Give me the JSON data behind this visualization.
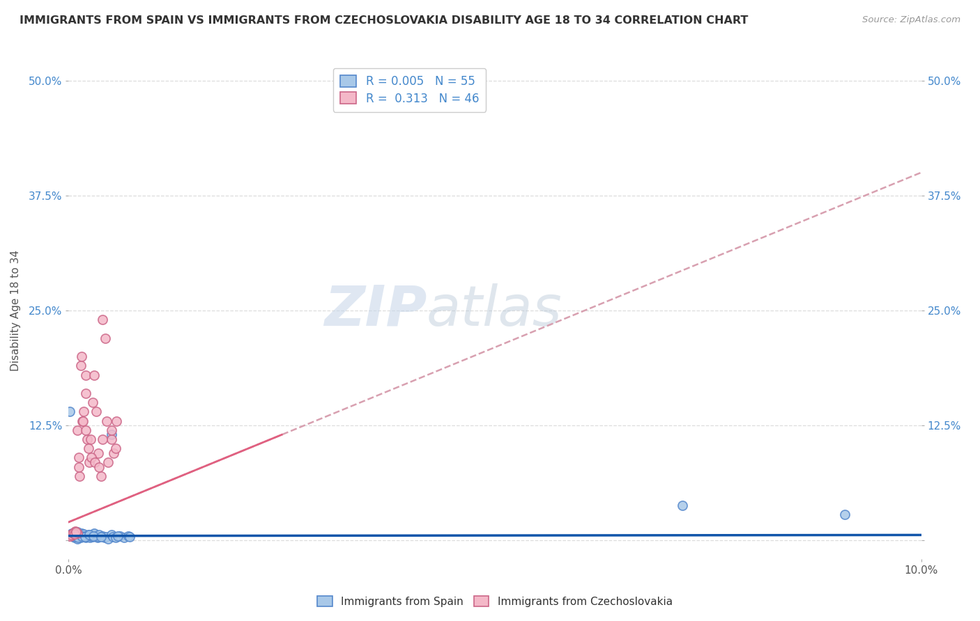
{
  "title": "IMMIGRANTS FROM SPAIN VS IMMIGRANTS FROM CZECHOSLOVAKIA DISABILITY AGE 18 TO 34 CORRELATION CHART",
  "source": "Source: ZipAtlas.com",
  "ylabel": "Disability Age 18 to 34",
  "watermark": "ZIPatlas",
  "legend_blue_label": "Immigrants from Spain",
  "legend_pink_label": "Immigrants from Czechoslovakia",
  "R_blue": "0.005",
  "N_blue": "55",
  "R_pink": "0.313",
  "N_pink": "46",
  "blue_face": "#a8c8e8",
  "blue_edge": "#5588cc",
  "blue_line": "#1155aa",
  "pink_face": "#f4b8c8",
  "pink_edge": "#cc6688",
  "pink_line_solid": "#e06080",
  "pink_line_dash": "#d8a0b0",
  "grid_color": "#dddddd",
  "blue_scatter_x": [
    0.0002,
    0.0004,
    0.0005,
    0.0006,
    0.0007,
    0.0008,
    0.001,
    0.001,
    0.001,
    0.0012,
    0.0013,
    0.0014,
    0.0015,
    0.0016,
    0.0017,
    0.0018,
    0.002,
    0.002,
    0.0022,
    0.0023,
    0.0025,
    0.0026,
    0.0028,
    0.003,
    0.003,
    0.0032,
    0.0034,
    0.0035,
    0.0036,
    0.004,
    0.0042,
    0.0044,
    0.0046,
    0.005,
    0.0052,
    0.0055,
    0.006,
    0.0065,
    0.007,
    0.0072,
    0.0001,
    0.0003,
    0.0005,
    0.0007,
    0.0009,
    0.0011,
    0.0015,
    0.0019,
    0.0024,
    0.0029,
    0.0038,
    0.005,
    0.0058,
    0.072,
    0.091
  ],
  "blue_scatter_y": [
    0.005,
    0.008,
    0.004,
    0.006,
    0.003,
    0.007,
    0.005,
    0.009,
    0.002,
    0.006,
    0.004,
    0.003,
    0.008,
    0.006,
    0.005,
    0.007,
    0.005,
    0.003,
    0.004,
    0.006,
    0.003,
    0.005,
    0.004,
    0.007,
    0.008,
    0.005,
    0.003,
    0.004,
    0.006,
    0.005,
    0.003,
    0.004,
    0.002,
    0.006,
    0.004,
    0.003,
    0.005,
    0.003,
    0.005,
    0.004,
    0.14,
    0.007,
    0.006,
    0.005,
    0.004,
    0.003,
    0.005,
    0.004,
    0.006,
    0.005,
    0.004,
    0.115,
    0.005,
    0.038,
    0.028
  ],
  "pink_scatter_x": [
    0.0002,
    0.0004,
    0.0005,
    0.0006,
    0.0007,
    0.0008,
    0.001,
    0.001,
    0.0012,
    0.0013,
    0.0014,
    0.0015,
    0.0016,
    0.0018,
    0.002,
    0.002,
    0.0022,
    0.0024,
    0.0026,
    0.0028,
    0.003,
    0.0032,
    0.0035,
    0.0038,
    0.004,
    0.0043,
    0.0046,
    0.005,
    0.0053,
    0.0056,
    0.0001,
    0.0003,
    0.0005,
    0.0007,
    0.0009,
    0.0012,
    0.0017,
    0.002,
    0.0023,
    0.0027,
    0.0031,
    0.0036,
    0.004,
    0.0045,
    0.005,
    0.0055
  ],
  "pink_scatter_y": [
    0.005,
    0.007,
    0.006,
    0.008,
    0.009,
    0.01,
    0.008,
    0.12,
    0.09,
    0.07,
    0.19,
    0.2,
    0.13,
    0.14,
    0.16,
    0.18,
    0.11,
    0.085,
    0.11,
    0.15,
    0.18,
    0.14,
    0.095,
    0.07,
    0.24,
    0.22,
    0.085,
    0.11,
    0.095,
    0.13,
    0.005,
    0.006,
    0.008,
    0.007,
    0.009,
    0.08,
    0.13,
    0.12,
    0.1,
    0.09,
    0.085,
    0.08,
    0.11,
    0.13,
    0.12,
    0.1
  ],
  "xlim": [
    0.0,
    0.1
  ],
  "ylim": [
    -0.02,
    0.52
  ],
  "ytick_vals": [
    0.0,
    0.125,
    0.25,
    0.375,
    0.5
  ]
}
